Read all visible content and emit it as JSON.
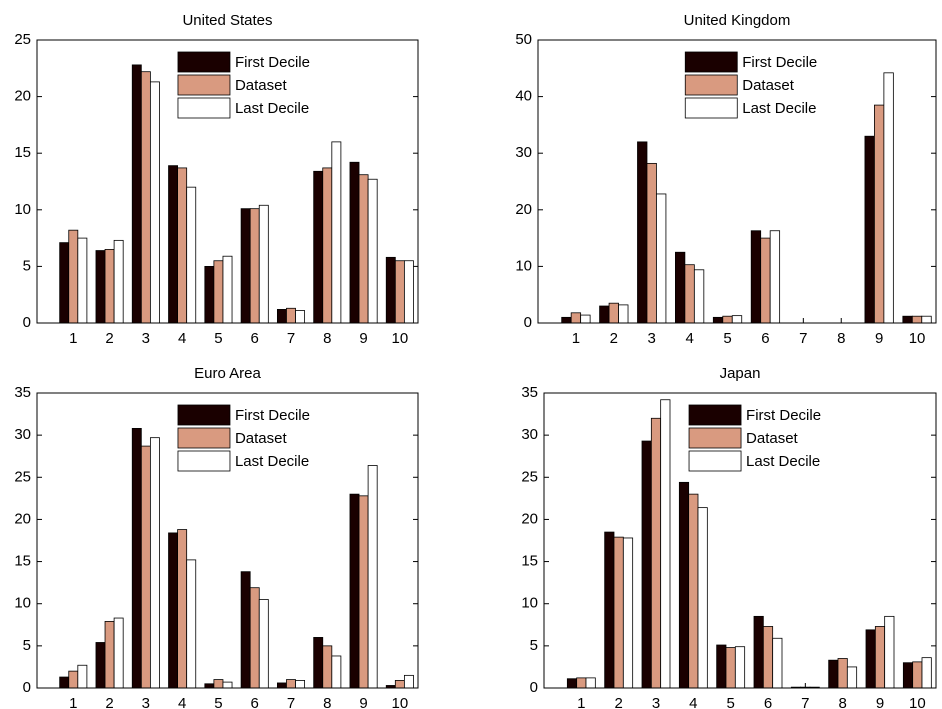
{
  "chart_data": [
    {
      "type": "bar",
      "title": "United States",
      "categories": [
        "1",
        "2",
        "3",
        "4",
        "5",
        "6",
        "7",
        "8",
        "9",
        "10"
      ],
      "series": [
        {
          "name": "First Decile",
          "color": "#1a0000",
          "values": [
            7.1,
            6.4,
            22.8,
            13.9,
            5.0,
            10.1,
            1.2,
            13.4,
            14.2,
            5.8
          ]
        },
        {
          "name": "Dataset",
          "color": "#d99a80",
          "values": [
            8.2,
            6.5,
            22.2,
            13.7,
            5.5,
            10.1,
            1.3,
            13.7,
            13.1,
            5.5
          ]
        },
        {
          "name": "Last Decile",
          "color": "#ffffff",
          "values": [
            7.5,
            7.3,
            21.3,
            12.0,
            5.9,
            10.4,
            1.1,
            16.0,
            12.7,
            5.5
          ]
        }
      ],
      "ylim": [
        0,
        25
      ],
      "yticks": [
        0,
        5,
        10,
        15,
        20,
        25
      ]
    },
    {
      "type": "bar",
      "title": "United Kingdom",
      "categories": [
        "1",
        "2",
        "3",
        "4",
        "5",
        "6",
        "7",
        "8",
        "9",
        "10"
      ],
      "series": [
        {
          "name": "First Decile",
          "color": "#1a0000",
          "values": [
            1.0,
            3.0,
            32.0,
            12.5,
            1.0,
            16.3,
            0,
            0,
            33.0,
            1.2
          ]
        },
        {
          "name": "Dataset",
          "color": "#d99a80",
          "values": [
            1.8,
            3.5,
            28.2,
            10.3,
            1.2,
            15.0,
            0,
            0,
            38.5,
            1.2
          ]
        },
        {
          "name": "Last Decile",
          "color": "#ffffff",
          "values": [
            1.4,
            3.2,
            22.8,
            9.4,
            1.3,
            16.3,
            0,
            0,
            44.2,
            1.2
          ]
        }
      ],
      "ylim": [
        0,
        50
      ],
      "yticks": [
        0,
        10,
        20,
        30,
        40,
        50
      ]
    },
    {
      "type": "bar",
      "title": "Euro Area",
      "categories": [
        "1",
        "2",
        "3",
        "4",
        "5",
        "6",
        "7",
        "8",
        "9",
        "10"
      ],
      "series": [
        {
          "name": "First Decile",
          "color": "#1a0000",
          "values": [
            1.3,
            5.4,
            30.8,
            18.4,
            0.5,
            13.8,
            0.6,
            6.0,
            23.0,
            0.3
          ]
        },
        {
          "name": "Dataset",
          "color": "#d99a80",
          "values": [
            2.0,
            7.9,
            28.7,
            18.8,
            1.0,
            11.9,
            1.0,
            5.0,
            22.8,
            0.9
          ]
        },
        {
          "name": "Last Decile",
          "color": "#ffffff",
          "values": [
            2.7,
            8.3,
            29.7,
            15.2,
            0.7,
            10.5,
            0.9,
            3.8,
            26.4,
            1.5
          ]
        }
      ],
      "ylim": [
        0,
        35
      ],
      "yticks": [
        0,
        5,
        10,
        15,
        20,
        25,
        30,
        35
      ]
    },
    {
      "type": "bar",
      "title": "Japan",
      "categories": [
        "1",
        "2",
        "3",
        "4",
        "5",
        "6",
        "7",
        "8",
        "9",
        "10"
      ],
      "series": [
        {
          "name": "First Decile",
          "color": "#1a0000",
          "values": [
            1.1,
            18.5,
            29.3,
            24.4,
            5.1,
            8.5,
            0.1,
            3.3,
            6.9,
            3.0
          ]
        },
        {
          "name": "Dataset",
          "color": "#d99a80",
          "values": [
            1.2,
            17.9,
            32.0,
            23.0,
            4.8,
            7.3,
            0.1,
            3.5,
            7.3,
            3.1
          ]
        },
        {
          "name": "Last Decile",
          "color": "#ffffff",
          "values": [
            1.2,
            17.8,
            34.2,
            21.4,
            4.9,
            5.9,
            0.1,
            2.5,
            8.5,
            3.6
          ]
        }
      ],
      "ylim": [
        0,
        35
      ],
      "yticks": [
        0,
        5,
        10,
        15,
        20,
        25,
        30,
        35
      ]
    }
  ]
}
